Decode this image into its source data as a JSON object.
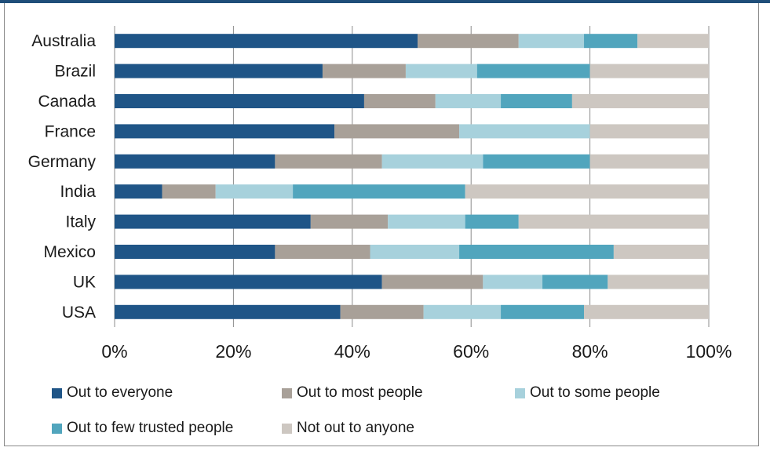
{
  "chart_data": {
    "type": "bar",
    "orientation": "horizontal",
    "stacked": true,
    "categories": [
      "Australia",
      "Brazil",
      "Canada",
      "France",
      "Germany",
      "India",
      "Italy",
      "Mexico",
      "UK",
      "USA"
    ],
    "series": [
      {
        "name": "Out to everyone",
        "color": "#1f5587",
        "values": [
          51,
          35,
          42,
          37,
          27,
          8,
          33,
          27,
          45,
          38
        ]
      },
      {
        "name": "Out to most people",
        "color": "#a8a098",
        "values": [
          17,
          14,
          12,
          21,
          18,
          9,
          13,
          16,
          17,
          14
        ]
      },
      {
        "name": "Out to some people",
        "color": "#a7d1dc",
        "values": [
          11,
          12,
          11,
          22,
          17,
          13,
          13,
          15,
          10,
          13
        ]
      },
      {
        "name": "Out to few trusted people",
        "color": "#51a5bd",
        "values": [
          9,
          19,
          12,
          0,
          18,
          29,
          9,
          26,
          11,
          14
        ]
      },
      {
        "name": "Not out to anyone",
        "color": "#cdc7c1",
        "values": [
          12,
          20,
          23,
          20,
          20,
          41,
          32,
          16,
          17,
          21
        ]
      }
    ],
    "xlim": [
      0,
      100
    ],
    "x_ticks": [
      "0%",
      "20%",
      "40%",
      "60%",
      "80%",
      "100%"
    ],
    "x_tick_values": [
      0,
      20,
      40,
      60,
      80,
      100
    ],
    "grid": true,
    "legend_position": "bottom"
  }
}
